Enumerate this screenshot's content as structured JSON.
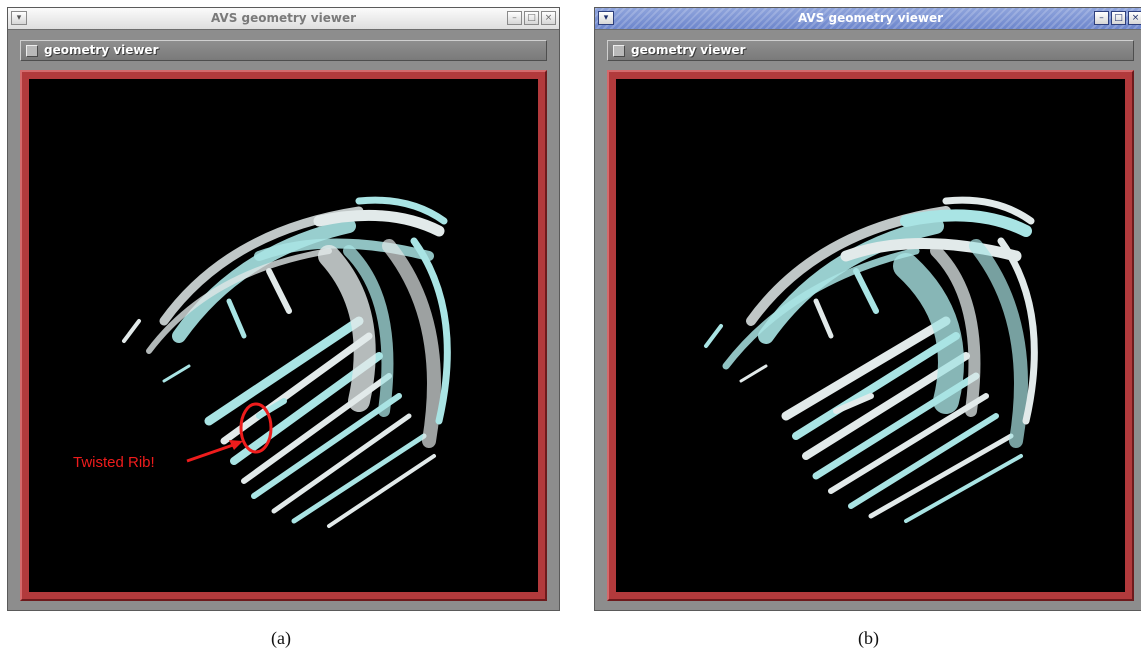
{
  "windows": [
    {
      "title": "AVS geometry viewer",
      "window_menu_icon": "chevron-down-icon",
      "controls": [
        "minimize-icon",
        "maximize-icon",
        "close-icon"
      ],
      "panel_label": "geometry viewer",
      "annotation": "Twisted Rib!",
      "caption": "(a)"
    },
    {
      "title": "AVS geometry viewer",
      "window_menu_icon": "chevron-down-icon",
      "controls": [
        "minimize-icon",
        "maximize-icon",
        "close-icon"
      ],
      "panel_label": "geometry viewer",
      "caption": "(b)"
    }
  ],
  "colors": {
    "viewport_frame": "#b23a3c",
    "viewport_background": "#000000",
    "surface_cyan": "#a9e4e4",
    "surface_white": "#e2eaea",
    "annotation_red": "#ee1c1c"
  }
}
